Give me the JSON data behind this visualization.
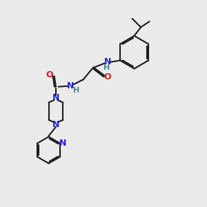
{
  "background_color": "#ebebeb",
  "bond_color": "#1a1a1a",
  "n_color": "#2222cc",
  "o_color": "#cc2020",
  "h_color": "#4a8888",
  "line_width": 1.5,
  "figsize": [
    3.0,
    3.0
  ],
  "dpi": 100,
  "xlim": [
    0,
    10
  ],
  "ylim": [
    0,
    10
  ]
}
